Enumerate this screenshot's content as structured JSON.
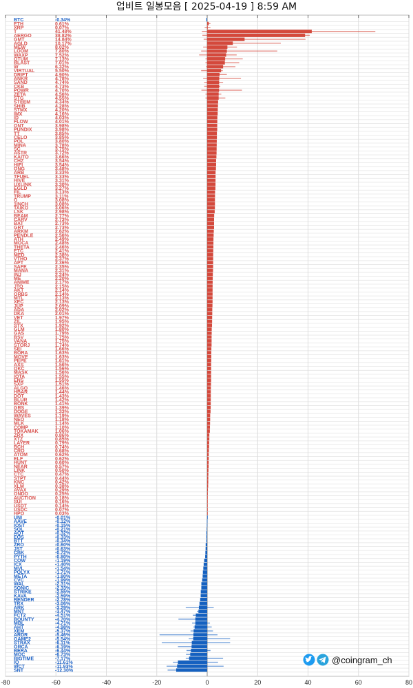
{
  "chart_data": {
    "type": "bar",
    "orientation": "horizontal",
    "title": "업비트 일봉모음 [ 2025-04-19 ]  8:59 AM",
    "xlim": [
      -80,
      80
    ],
    "xticks": [
      -80,
      -60,
      -40,
      -20,
      0,
      20,
      40,
      60,
      80
    ],
    "grid": true,
    "colors": {
      "positive": "#d4493c",
      "negative": "#1561c0",
      "positive_label": "#d9534f",
      "negative_label": "#1f63c6"
    },
    "value_suffix": "%",
    "columns": [
      "symbol",
      "change_pct",
      "range_low",
      "range_high"
    ],
    "rows": [
      [
        "BTC",
        -0.34,
        null,
        null
      ],
      [
        "ETH",
        0.61,
        0,
        1.3
      ],
      [
        "XRP",
        0.07,
        -1,
        1.3
      ],
      [
        "T",
        41.48,
        -2.1,
        66.7
      ],
      [
        "AERGO",
        38.82,
        -1.9,
        40.7
      ],
      [
        "GMT",
        14.84,
        -1.4,
        39
      ],
      [
        "AGLD",
        10.17,
        0.2,
        29.2
      ],
      [
        "MEW",
        8.02,
        -1.6,
        11.8
      ],
      [
        "LOOM",
        7.8,
        -2.4,
        27.8
      ],
      [
        "WAXP",
        7.52,
        -3.2,
        11.7
      ],
      [
        "QTUM",
        7.13,
        -0.7,
        14.1
      ],
      [
        "BLAST",
        7.01,
        -0.7,
        12.7
      ],
      [
        "W",
        6.32,
        -0.5,
        11.2
      ],
      [
        "VIRTUAL",
        5.5,
        -2.4,
        6.2
      ],
      [
        "DRIFT",
        4.9,
        0,
        7.8
      ],
      [
        "ANKR",
        4.78,
        -1.6,
        13.4
      ],
      [
        "SAND",
        4.74,
        -1.2,
        6.3
      ],
      [
        "CKB",
        4.73,
        -1.2,
        5.2
      ],
      [
        "POWR",
        4.7,
        -2.3,
        13.8
      ],
      [
        "ZETA",
        4.56,
        -0.7,
        5.6
      ],
      [
        "STG",
        4.55,
        -0.7,
        7.2
      ],
      [
        "STEEM",
        4.34,
        null,
        null
      ],
      [
        "SHIB",
        4.28,
        null,
        null
      ],
      [
        "STMX",
        4.2,
        null,
        null
      ],
      [
        "IMX",
        4.16,
        null,
        null
      ],
      [
        "ID",
        4.03,
        null,
        null
      ],
      [
        "FLOW",
        4.01,
        null,
        null
      ],
      [
        "ONT",
        3.98,
        null,
        null
      ],
      [
        "PUNDIX",
        3.98,
        null,
        null
      ],
      [
        "TT",
        3.85,
        null,
        null
      ],
      [
        "CELO",
        3.85,
        null,
        null
      ],
      [
        "POL",
        3.8,
        null,
        null
      ],
      [
        "MINA",
        3.78,
        null,
        null
      ],
      [
        "SC",
        3.75,
        null,
        null
      ],
      [
        "ASTR",
        3.72,
        null,
        null
      ],
      [
        "KAITO",
        3.66,
        null,
        null
      ],
      [
        "CHZ",
        3.54,
        null,
        null
      ],
      [
        "HIFI",
        3.54,
        null,
        null
      ],
      [
        "ONG",
        3.48,
        null,
        null
      ],
      [
        "ARB",
        3.33,
        null,
        null
      ],
      [
        "TFUEL",
        3.33,
        null,
        null
      ],
      [
        "HIVE",
        3.31,
        null,
        null
      ],
      [
        "UXLINK",
        3.3,
        null,
        null
      ],
      [
        "EGLD",
        3.27,
        null,
        null
      ],
      [
        "FIL",
        3.13,
        null,
        null
      ],
      [
        "TRUMP",
        3.11,
        null,
        null
      ],
      [
        "G",
        3.08,
        null,
        null
      ],
      [
        "1INCH",
        3.08,
        null,
        null
      ],
      [
        "TAIKO",
        3.06,
        null,
        null
      ],
      [
        "LSK",
        2.98,
        null,
        null
      ],
      [
        "BEAM",
        2.77,
        null,
        null
      ],
      [
        "CARV",
        2.73,
        null,
        null
      ],
      [
        "BAT",
        2.73,
        null,
        null
      ],
      [
        "GRT",
        2.73,
        null,
        null
      ],
      [
        "ARKM",
        2.62,
        null,
        null
      ],
      [
        "PENDLE",
        2.56,
        null,
        null
      ],
      [
        "ATH",
        2.49,
        null,
        null
      ],
      [
        "MOCA",
        2.48,
        null,
        null
      ],
      [
        "THETA",
        2.46,
        null,
        null
      ],
      [
        "ETC",
        2.41,
        null,
        null
      ],
      [
        "MED",
        2.38,
        null,
        null
      ],
      [
        "VTHO",
        2.37,
        null,
        null
      ],
      [
        "APT",
        2.36,
        null,
        null
      ],
      [
        "SAFE",
        2.35,
        null,
        null
      ],
      [
        "MANA",
        2.31,
        null,
        null
      ],
      [
        "INJ",
        2.24,
        null,
        null
      ],
      [
        "ME",
        2.2,
        null,
        null
      ],
      [
        "ANIME",
        2.17,
        null,
        null
      ],
      [
        "JTO",
        2.15,
        null,
        null
      ],
      [
        "AKT",
        2.14,
        null,
        null
      ],
      [
        "ORBS",
        2.14,
        null,
        null
      ],
      [
        "MTL",
        2.13,
        null,
        null
      ],
      [
        "XEC",
        2.13,
        null,
        null
      ],
      [
        "JUP",
        2.09,
        null,
        null
      ],
      [
        "ADA",
        2.02,
        null,
        null
      ],
      [
        "DKA",
        2.01,
        null,
        null
      ],
      [
        "VET",
        1.97,
        null,
        null
      ],
      [
        "ZIL",
        1.95,
        null,
        null
      ],
      [
        "STX",
        1.92,
        null,
        null
      ],
      [
        "GLM",
        1.8,
        null,
        null
      ],
      [
        "GAS",
        1.79,
        null,
        null
      ],
      [
        "BSV",
        1.75,
        null,
        null
      ],
      [
        "VANA",
        1.75,
        null,
        null
      ],
      [
        "STORJ",
        1.74,
        null,
        null
      ],
      [
        "SEI",
        1.66,
        null,
        null
      ],
      [
        "BORA",
        1.63,
        null,
        null
      ],
      [
        "MOVE",
        1.63,
        null,
        null
      ],
      [
        "PEPE",
        1.61,
        null,
        null
      ],
      [
        "AXS",
        1.56,
        null,
        null
      ],
      [
        "QKC",
        1.56,
        null,
        null
      ],
      [
        "MASK",
        1.56,
        null,
        null
      ],
      [
        "IOTA",
        1.55,
        null,
        null
      ],
      [
        "ENS",
        1.55,
        null,
        null
      ],
      [
        "SXP",
        1.51,
        null,
        null
      ],
      [
        "ALGO",
        1.46,
        null,
        null
      ],
      [
        "HBAR",
        1.44,
        null,
        null
      ],
      [
        "DOT",
        1.43,
        null,
        null
      ],
      [
        "BLUR",
        1.42,
        null,
        null
      ],
      [
        "BONK",
        1.41,
        null,
        null
      ],
      [
        "GRS",
        1.39,
        null,
        null
      ],
      [
        "DOGE",
        1.33,
        null,
        null
      ],
      [
        "WAVES",
        1.19,
        null,
        null
      ],
      [
        "NEO",
        1.18,
        null,
        null
      ],
      [
        "MLK",
        1.14,
        null,
        null
      ],
      [
        "COMP",
        1.1,
        null,
        null
      ],
      [
        "TOKAMAK",
        1.06,
        null,
        null
      ],
      [
        "ZRX",
        0.86,
        null,
        null
      ],
      [
        "XTZ",
        0.85,
        null,
        null
      ],
      [
        "LAYER",
        0.79,
        null,
        null
      ],
      [
        "BCH",
        0.74,
        null,
        null
      ],
      [
        "CRO",
        0.68,
        null,
        null
      ],
      [
        "ATOM",
        0.62,
        null,
        null
      ],
      [
        "ELF",
        0.62,
        null,
        null
      ],
      [
        "HUNT",
        0.6,
        null,
        null
      ],
      [
        "NEAR",
        0.57,
        null,
        null
      ],
      [
        "LINK",
        0.5,
        null,
        null
      ],
      [
        "CTC",
        0.47,
        null,
        null
      ],
      [
        "STPT",
        0.44,
        null,
        null
      ],
      [
        "KNC",
        0.42,
        null,
        null
      ],
      [
        "XLM",
        0.38,
        null,
        null
      ],
      [
        "AVAX",
        0.29,
        null,
        null
      ],
      [
        "ONDO",
        0.25,
        null,
        null
      ],
      [
        "AUCTION",
        0.18,
        null,
        null
      ],
      [
        "SUI",
        0.16,
        null,
        null
      ],
      [
        "USDT",
        0.14,
        null,
        null
      ],
      [
        "USDC",
        0.07,
        null,
        null
      ],
      [
        "HPO",
        0.03,
        null,
        null
      ],
      [
        "UNI",
        -0.01,
        null,
        null
      ],
      [
        "AAVE",
        -0.12,
        null,
        null
      ],
      [
        "IOST",
        -0.15,
        null,
        null
      ],
      [
        "SOL",
        -0.21,
        null,
        null
      ],
      [
        "AQT",
        -0.32,
        null,
        null
      ],
      [
        "EOS",
        -0.33,
        null,
        null
      ],
      [
        "BTT",
        -0.34,
        null,
        null
      ],
      [
        "ZRO",
        -0.6,
        null,
        null
      ],
      [
        "JST",
        -0.63,
        null,
        null
      ],
      [
        "CBK",
        -0.72,
        null,
        null
      ],
      [
        "PYTH",
        -0.8,
        null,
        null
      ],
      [
        "COW",
        -1.19,
        null,
        null
      ],
      [
        "ICX",
        -1.4,
        null,
        null
      ],
      [
        "MVL",
        -1.54,
        null,
        null
      ],
      [
        "POLYX",
        -1.71,
        null,
        null
      ],
      [
        "META",
        -1.8,
        null,
        null
      ],
      [
        "CVC",
        -1.99,
        null,
        null
      ],
      [
        "WAL",
        -2.31,
        null,
        null
      ],
      [
        "SONIC",
        -2.33,
        null,
        null
      ],
      [
        "STRIKE",
        -2.55,
        null,
        null
      ],
      [
        "KAVA",
        -2.59,
        null,
        null
      ],
      [
        "RENDER",
        -2.78,
        null,
        null
      ],
      [
        "TRX",
        -3.06,
        null,
        null
      ],
      [
        "ARK",
        -3.29,
        -8.5,
        2.6
      ],
      [
        "MNT",
        -3.47,
        -4.1,
        0
      ],
      [
        "FCT2",
        -4.51,
        -5.7,
        0
      ],
      [
        "BOUNTY",
        -4.7,
        -11.4,
        0
      ],
      [
        "MBL",
        -4.71,
        -6.0,
        1.1
      ],
      [
        "AHT",
        -4.98,
        -5.5,
        1.8
      ],
      [
        "XEM",
        -5.37,
        -6.6,
        2.3
      ],
      [
        "ARDR",
        -5.46,
        -18.9,
        4.1
      ],
      [
        "GAME2",
        -5.54,
        -7.3,
        9.1
      ],
      [
        "STRAX",
        -6.11,
        -18.0,
        9.1
      ],
      [
        "ORCA",
        -6.19,
        -11.6,
        0
      ],
      [
        "BERA",
        -6.44,
        -8.2,
        1.3
      ],
      [
        "MOC",
        -6.73,
        -8.4,
        0
      ],
      [
        "BIGTIME",
        -7.17,
        -8.5,
        6.3
      ],
      [
        "IQ",
        -11.61,
        -13.6,
        4.3
      ],
      [
        "WCT",
        -11.93,
        -16.1,
        6.5
      ],
      [
        "SNT",
        -12.3,
        -15.7,
        0
      ]
    ]
  },
  "watermark": {
    "handle": "@coingram_ch",
    "icons": [
      "twitter-icon",
      "telegram-icon"
    ]
  }
}
